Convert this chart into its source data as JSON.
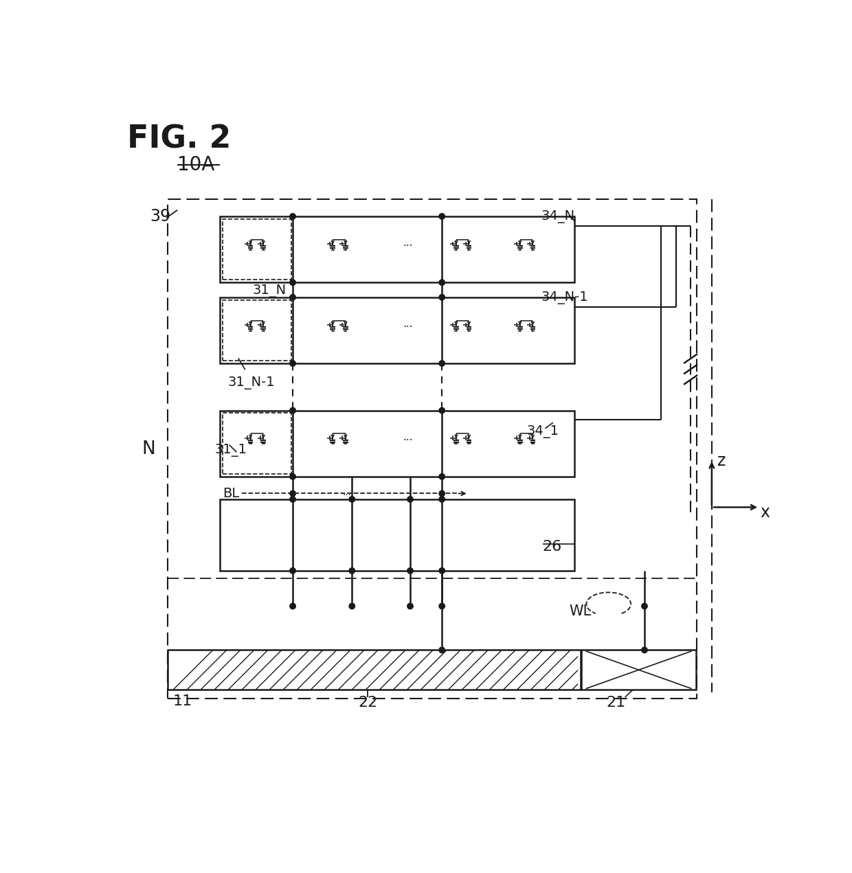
{
  "title": "FIG. 2",
  "label_10A": "10A",
  "label_39": "39",
  "label_N": "N",
  "label_31N": "31_N",
  "label_31N1": "31_N-1",
  "label_311": "31_1",
  "label_34N": "34_N",
  "label_34N1": "34_N-1",
  "label_341": "34_1",
  "label_BL": "BL",
  "label_26": "26",
  "label_WL": "WL",
  "label_22": "22",
  "label_21": "21",
  "label_11": "11",
  "bg_color": "#ffffff",
  "line_color": "#1a1a1a"
}
